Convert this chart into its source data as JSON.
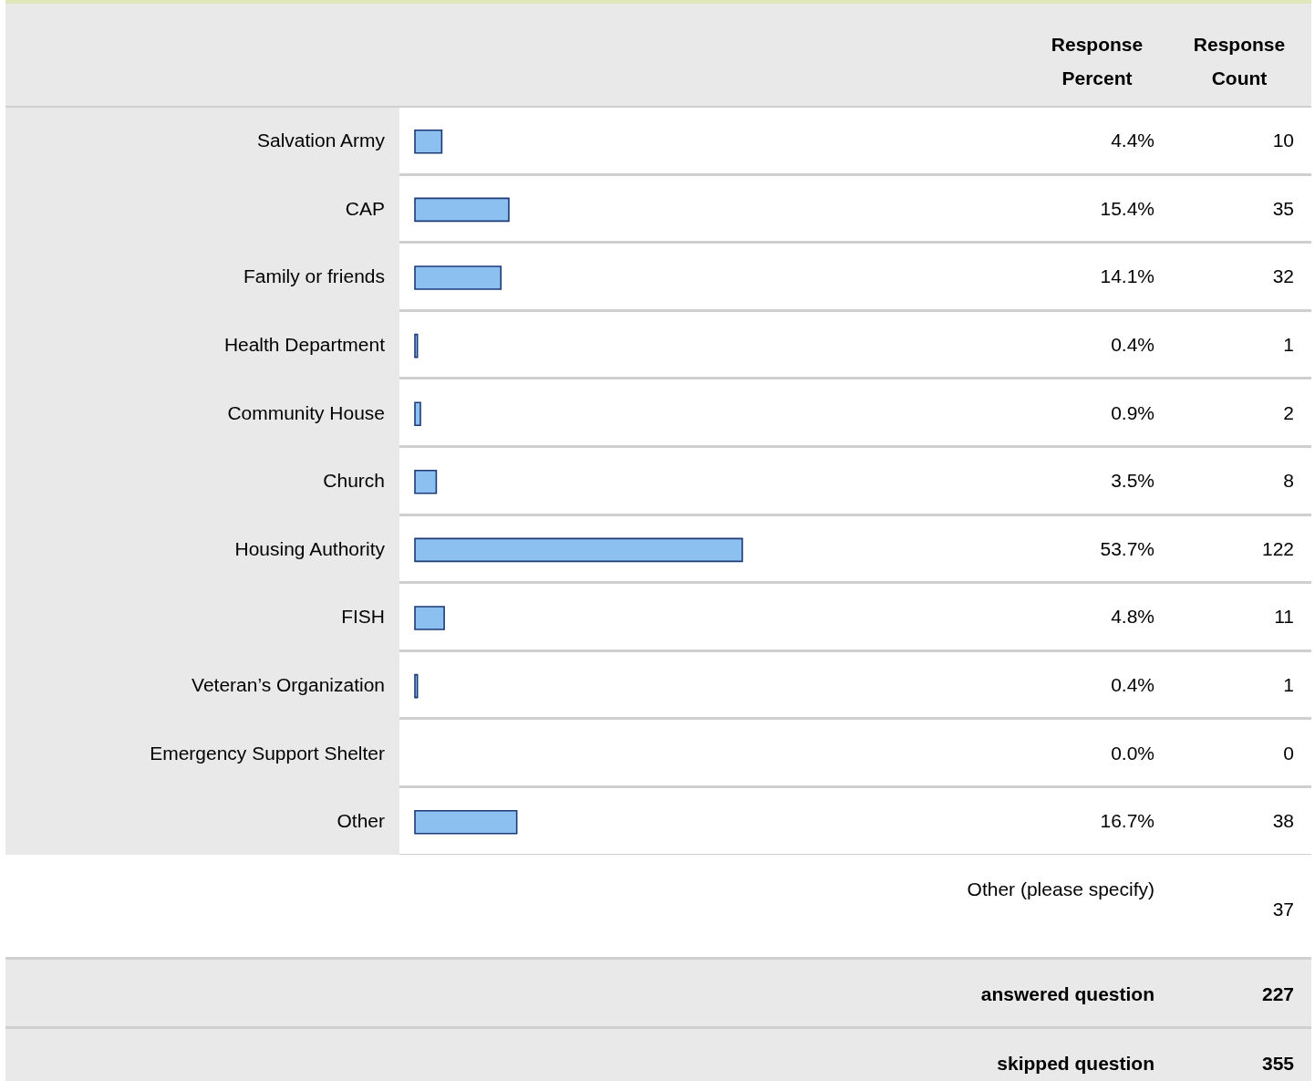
{
  "chart_data": {
    "type": "bar",
    "orientation": "horizontal",
    "categories": [
      "Salvation Army",
      "CAP",
      "Family or friends",
      "Health Department",
      "Community House",
      "Church",
      "Housing Authority",
      "FISH",
      "Veteran’s Organization",
      "Emergency Support Shelter",
      "Other"
    ],
    "values": [
      4.4,
      15.4,
      14.1,
      0.4,
      0.9,
      3.5,
      53.7,
      4.8,
      0.4,
      0.0,
      16.7
    ],
    "value_labels": [
      "4.4%",
      "15.4%",
      "14.1%",
      "0.4%",
      "0.9%",
      "3.5%",
      "53.7%",
      "4.8%",
      "0.4%",
      "0.0%",
      "16.7%"
    ],
    "color": "#8cc0f0",
    "annotations": [
      "Response Percent",
      "Response Count",
      "10",
      "35",
      "32",
      "1",
      "2",
      "8",
      "122",
      "11",
      "1",
      "0",
      "38",
      "Other (please specify)",
      "37",
      "answered question",
      "227",
      "skipped question",
      "355"
    ]
  }
}
